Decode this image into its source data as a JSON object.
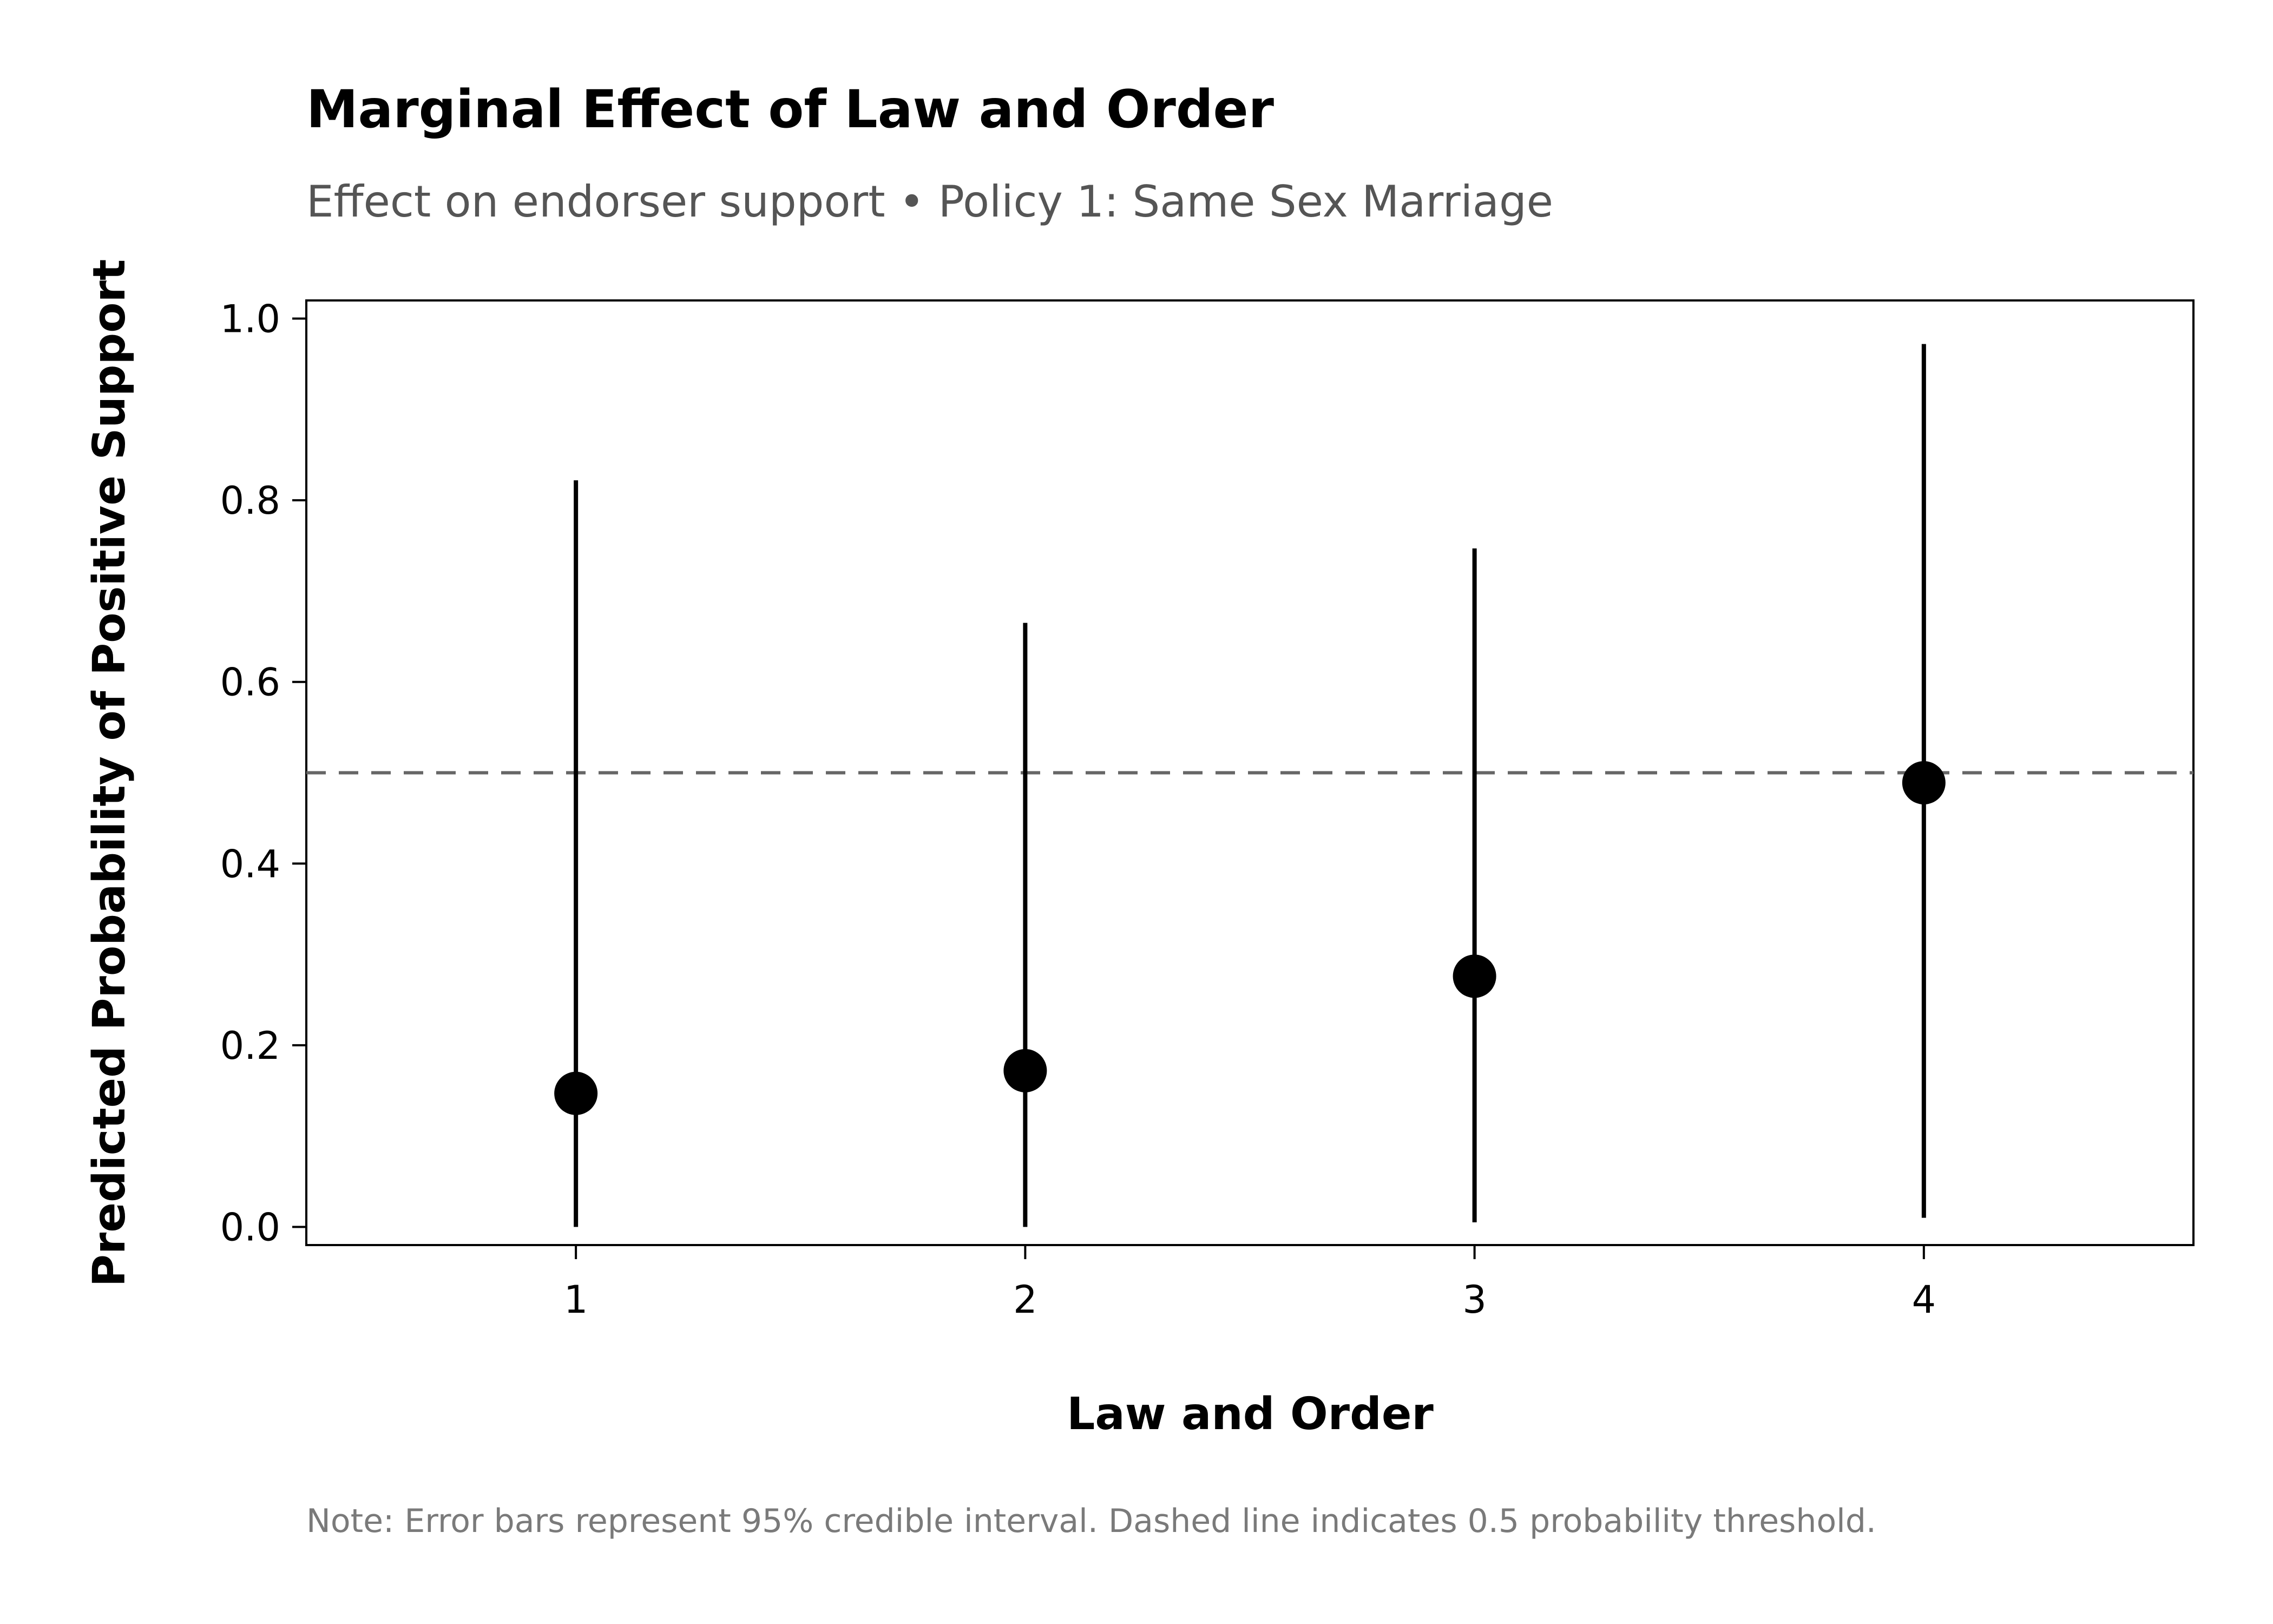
{
  "chart_data": {
    "type": "scatter",
    "title": "Marginal Effect of Law and Order",
    "subtitle": "Effect on endorser support • Policy 1: Same Sex Marriage",
    "xlabel": "Law and Order",
    "ylabel": "Predicted Probability of Positive Support",
    "note": "Note: Error bars represent 95% credible interval. Dashed line indicates 0.5 probability threshold.",
    "x": [
      1,
      2,
      3,
      4
    ],
    "x_tick_labels": [
      "1",
      "2",
      "3",
      "4"
    ],
    "y_ticks": [
      0.0,
      0.2,
      0.4,
      0.6,
      0.8,
      1.0
    ],
    "y_tick_labels": [
      "0.0",
      "0.2",
      "0.4",
      "0.6",
      "0.8",
      "1.0"
    ],
    "xlim": [
      0.4,
      4.6
    ],
    "ylim": [
      -0.02,
      1.02
    ],
    "series": [
      {
        "values": [
          0.147,
          0.172,
          0.276,
          0.489
        ],
        "lower": [
          0.0,
          0.0,
          0.005,
          0.01
        ],
        "upper": [
          0.822,
          0.665,
          0.747,
          0.972
        ]
      }
    ],
    "reference_line": {
      "y": 0.5,
      "style": "dashed"
    },
    "grid": false,
    "legend": "none",
    "colors": {
      "points": "#000000",
      "error_bars": "#000000",
      "reference_line": "#666666",
      "frame": "#000000"
    }
  }
}
